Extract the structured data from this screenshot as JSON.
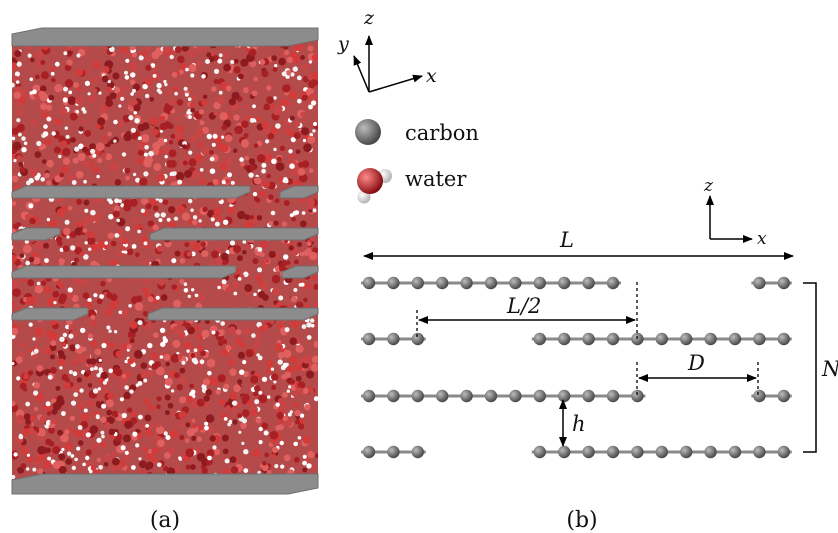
{
  "panel_a": {
    "caption": "(a)"
  },
  "panel_b": {
    "caption": "(b)",
    "length_label": "L",
    "half_length_label": "L/2",
    "offset_label": "D",
    "spacing_label": "h",
    "layers_label": "N"
  },
  "axes_3d": {
    "z": "z",
    "y": "y",
    "x": "x"
  },
  "axes_2d": {
    "z": "z",
    "x": "x"
  },
  "legend": [
    {
      "label": "carbon",
      "icon": "carbon-atom-icon"
    },
    {
      "label": "water",
      "icon": "water-molecule-icon"
    }
  ],
  "colors": {
    "carbon": "#6e6e6e",
    "oxygen": "#c0282d",
    "hydrogen": "#f0f0f0",
    "sheet": "#8c8c8c",
    "line": "#000000"
  },
  "layers": [
    {
      "segments": [
        [
          0,
          10
        ],
        [
          16,
          17
        ]
      ]
    },
    {
      "segments": [
        [
          0,
          2
        ],
        [
          7,
          17
        ]
      ]
    },
    {
      "segments": [
        [
          0,
          11
        ],
        [
          16,
          17
        ]
      ]
    },
    {
      "segments": [
        [
          0,
          2
        ],
        [
          7,
          17
        ]
      ]
    }
  ]
}
